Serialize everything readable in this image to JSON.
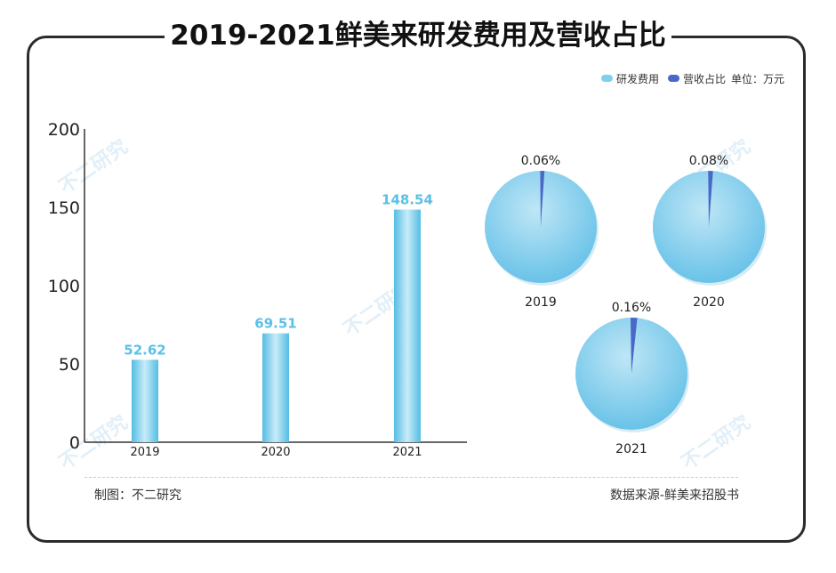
{
  "title": "2019-2021鲜美来研发费用及营收占比",
  "legend": {
    "series_a": "研发费用",
    "series_b": "营收占比",
    "unit": "单位：万元"
  },
  "footer": {
    "left": "制图：不二研究",
    "right": "数据来源-鲜美来招股书"
  },
  "watermark": "不二研究",
  "colors": {
    "bar": "#5ec3e6",
    "pie_base": "#6fc4e6",
    "pie_share": "#4a68c9",
    "label": "#5bc0e6"
  },
  "chart_data": [
    {
      "type": "bar",
      "categories": [
        "2019",
        "2020",
        "2021"
      ],
      "series": [
        {
          "name": "研发费用",
          "values": [
            52.62,
            69.51,
            148.54
          ]
        }
      ],
      "ylim": [
        0,
        200
      ],
      "yticks": [
        0,
        50,
        100,
        150,
        200
      ],
      "data_labels": [
        "52.62",
        "69.51",
        "148.54"
      ]
    },
    {
      "type": "pie",
      "pies": [
        {
          "year": "2019",
          "share_label": "0.06%",
          "share": 0.06
        },
        {
          "year": "2020",
          "share_label": "0.08%",
          "share": 0.08
        },
        {
          "year": "2021",
          "share_label": "0.16%",
          "share": 0.16
        }
      ]
    }
  ]
}
